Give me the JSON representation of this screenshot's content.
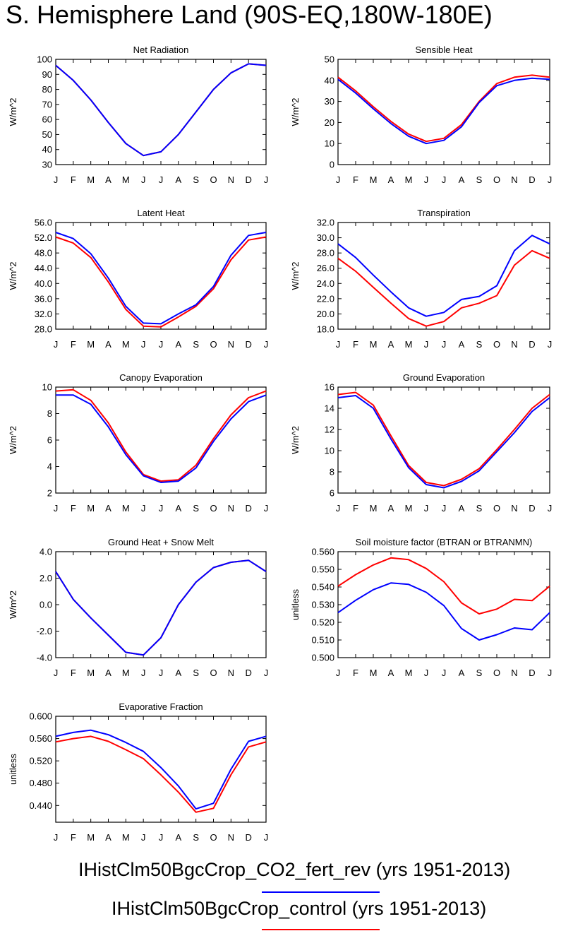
{
  "figure": {
    "title": "S. Hemisphere Land (90S-EQ,180W-180E)"
  },
  "legend": [
    {
      "label": "IHistClm50BgcCrop_CO2_fert_rev (yrs 1951-2013)",
      "color": "#0000ff"
    },
    {
      "label": "IHistClm50BgcCrop_control (yrs 1951-2013)",
      "color": "#ff0000"
    }
  ],
  "chart_data": [
    {
      "type": "line",
      "title": "Net Radiation",
      "ylabel": "W/m^2",
      "categories": [
        "J",
        "F",
        "M",
        "A",
        "M",
        "J",
        "J",
        "A",
        "S",
        "O",
        "N",
        "D",
        "J"
      ],
      "ylim": [
        30,
        100
      ],
      "yticks": [
        "30",
        "40",
        "50",
        "60",
        "70",
        "80",
        "90",
        "100"
      ],
      "series": [
        {
          "color": "#ff0000",
          "values": [
            96,
            86,
            73,
            58,
            44,
            36,
            38.5,
            50,
            65,
            80,
            91,
            97,
            96
          ]
        },
        {
          "color": "#0000ff",
          "values": [
            96,
            86,
            73,
            58,
            44,
            36,
            38.5,
            50,
            65,
            80,
            91,
            97,
            96
          ]
        }
      ]
    },
    {
      "type": "line",
      "title": "Sensible Heat",
      "ylabel": "W/m^2",
      "categories": [
        "J",
        "F",
        "M",
        "A",
        "M",
        "J",
        "J",
        "A",
        "S",
        "O",
        "N",
        "D",
        "J"
      ],
      "ylim": [
        0,
        50
      ],
      "yticks": [
        "0",
        "10",
        "20",
        "30",
        "40",
        "50"
      ],
      "series": [
        {
          "color": "#ff0000",
          "values": [
            41.5,
            35,
            27.5,
            20.5,
            14.5,
            11,
            12.5,
            19,
            30,
            38.5,
            41.5,
            42.5,
            41.5
          ]
        },
        {
          "color": "#0000ff",
          "values": [
            40.5,
            34,
            26.5,
            19.5,
            13.5,
            10,
            11.5,
            18,
            29.5,
            37.5,
            40,
            41,
            40.5
          ]
        }
      ]
    },
    {
      "type": "line",
      "title": "Latent Heat",
      "ylabel": "W/m^2",
      "categories": [
        "J",
        "F",
        "M",
        "A",
        "M",
        "J",
        "J",
        "A",
        "S",
        "O",
        "N",
        "D",
        "J"
      ],
      "ylim": [
        28,
        56
      ],
      "yticks": [
        "28.0",
        "32.0",
        "36.0",
        "40.0",
        "44.0",
        "48.0",
        "52.0",
        "56.0"
      ],
      "series": [
        {
          "color": "#ff0000",
          "values": [
            52.2,
            50.6,
            46.8,
            40.4,
            33.2,
            28.8,
            28.6,
            31.2,
            34.0,
            38.6,
            46.2,
            51.4,
            52.2
          ]
        },
        {
          "color": "#0000ff",
          "values": [
            53.4,
            51.8,
            47.8,
            41.4,
            34.0,
            29.6,
            29.4,
            32.0,
            34.4,
            39.2,
            47.4,
            52.6,
            53.4
          ]
        }
      ]
    },
    {
      "type": "line",
      "title": "Transpiration",
      "ylabel": "W/m^2",
      "categories": [
        "J",
        "F",
        "M",
        "A",
        "M",
        "J",
        "J",
        "A",
        "S",
        "O",
        "N",
        "D",
        "J"
      ],
      "ylim": [
        18,
        32
      ],
      "yticks": [
        "18.0",
        "20.0",
        "22.0",
        "24.0",
        "26.0",
        "28.0",
        "30.0",
        "32.0"
      ],
      "series": [
        {
          "color": "#ff0000",
          "values": [
            27.3,
            25.6,
            23.5,
            21.4,
            19.4,
            18.4,
            19.0,
            20.8,
            21.4,
            22.4,
            26.4,
            28.3,
            27.3
          ]
        },
        {
          "color": "#0000ff",
          "values": [
            29.2,
            27.4,
            25.1,
            22.9,
            20.8,
            19.7,
            20.2,
            21.9,
            22.3,
            23.7,
            28.3,
            30.3,
            29.2
          ]
        }
      ]
    },
    {
      "type": "line",
      "title": "Canopy Evaporation",
      "ylabel": "W/m^2",
      "categories": [
        "J",
        "F",
        "M",
        "A",
        "M",
        "J",
        "J",
        "A",
        "S",
        "O",
        "N",
        "D",
        "J"
      ],
      "ylim": [
        2,
        10
      ],
      "yticks": [
        "2",
        "4",
        "6",
        "8",
        "10"
      ],
      "series": [
        {
          "color": "#ff0000",
          "values": [
            9.7,
            9.8,
            9.0,
            7.3,
            5.1,
            3.4,
            2.9,
            3.0,
            4.1,
            6.1,
            7.9,
            9.2,
            9.7
          ]
        },
        {
          "color": "#0000ff",
          "values": [
            9.4,
            9.4,
            8.7,
            7.0,
            4.9,
            3.3,
            2.8,
            2.9,
            3.9,
            5.9,
            7.6,
            8.9,
            9.4
          ]
        }
      ]
    },
    {
      "type": "line",
      "title": "Ground Evaporation",
      "ylabel": "W/m^2",
      "categories": [
        "J",
        "F",
        "M",
        "A",
        "M",
        "J",
        "J",
        "A",
        "S",
        "O",
        "N",
        "D",
        "J"
      ],
      "ylim": [
        6,
        16
      ],
      "yticks": [
        "6",
        "8",
        "10",
        "12",
        "14",
        "16"
      ],
      "series": [
        {
          "color": "#ff0000",
          "values": [
            15.3,
            15.5,
            14.3,
            11.4,
            8.6,
            7.0,
            6.7,
            7.3,
            8.3,
            10.1,
            12.0,
            14.0,
            15.3
          ]
        },
        {
          "color": "#0000ff",
          "values": [
            15.0,
            15.2,
            14.0,
            11.1,
            8.4,
            6.8,
            6.5,
            7.1,
            8.1,
            9.9,
            11.7,
            13.7,
            15.0
          ]
        }
      ]
    },
    {
      "type": "line",
      "title": "Ground Heat + Snow Melt",
      "ylabel": "W/m^2",
      "categories": [
        "J",
        "F",
        "M",
        "A",
        "M",
        "J",
        "J",
        "A",
        "S",
        "O",
        "N",
        "D",
        "J"
      ],
      "ylim": [
        -4,
        4
      ],
      "yticks": [
        "-4.0",
        "-2.0",
        "0.0",
        "2.0",
        "4.0"
      ],
      "series": [
        {
          "color": "#ff0000",
          "values": [
            2.5,
            0.4,
            -1.0,
            -2.3,
            -3.6,
            -3.8,
            -2.5,
            0.0,
            1.7,
            2.8,
            3.2,
            3.35,
            2.5
          ]
        },
        {
          "color": "#0000ff",
          "values": [
            2.5,
            0.4,
            -1.0,
            -2.3,
            -3.6,
            -3.8,
            -2.5,
            0.0,
            1.7,
            2.8,
            3.2,
            3.35,
            2.5
          ]
        }
      ]
    },
    {
      "type": "line",
      "title": "Soil moisture factor (BTRAN or BTRANMN)",
      "ylabel": "unitless",
      "categories": [
        "J",
        "F",
        "M",
        "A",
        "M",
        "J",
        "J",
        "A",
        "S",
        "O",
        "N",
        "D",
        "J"
      ],
      "ylim": [
        0.5,
        0.56
      ],
      "yticks": [
        "0.500",
        "0.510",
        "0.520",
        "0.530",
        "0.540",
        "0.550",
        "0.560"
      ],
      "series": [
        {
          "color": "#ff0000",
          "values": [
            0.5405,
            0.547,
            0.5525,
            0.5565,
            0.5555,
            0.5505,
            0.543,
            0.531,
            0.5248,
            0.5275,
            0.533,
            0.5323,
            0.5405
          ]
        },
        {
          "color": "#0000ff",
          "values": [
            0.5255,
            0.5325,
            0.5385,
            0.5423,
            0.5415,
            0.537,
            0.5295,
            0.5165,
            0.51,
            0.513,
            0.5168,
            0.5158,
            0.5255
          ]
        }
      ]
    },
    {
      "type": "line",
      "title": "Evaporative Fraction",
      "ylabel": "unitless",
      "categories": [
        "J",
        "F",
        "M",
        "A",
        "M",
        "J",
        "J",
        "A",
        "S",
        "O",
        "N",
        "D",
        "J"
      ],
      "ylim": [
        0.41,
        0.6
      ],
      "yticks": [
        "0.440",
        "0.480",
        "0.520",
        "0.560",
        "0.600"
      ],
      "series": [
        {
          "color": "#ff0000",
          "values": [
            0.554,
            0.56,
            0.564,
            0.555,
            0.54,
            0.524,
            0.495,
            0.464,
            0.428,
            0.435,
            0.495,
            0.545,
            0.554
          ]
        },
        {
          "color": "#0000ff",
          "values": [
            0.564,
            0.571,
            0.575,
            0.567,
            0.553,
            0.537,
            0.508,
            0.475,
            0.434,
            0.444,
            0.505,
            0.555,
            0.564
          ]
        }
      ]
    }
  ]
}
